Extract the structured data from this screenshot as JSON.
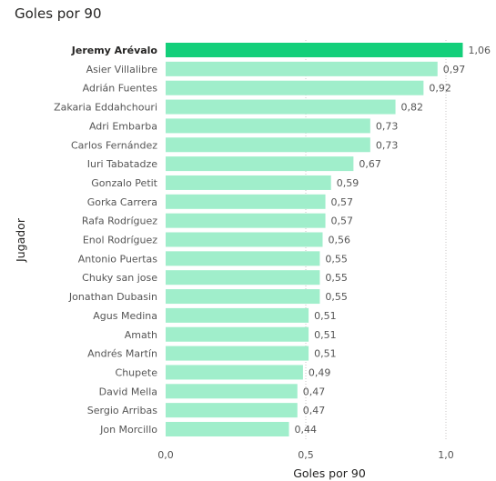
{
  "chart_data": {
    "type": "bar",
    "orientation": "horizontal",
    "title": "Goles por 90",
    "xlabel": "Goles por 90",
    "ylabel": "Jugador",
    "xlim": [
      0,
      1.06
    ],
    "xticks": [
      "0,0",
      "0,5",
      "1,0"
    ],
    "xtick_values": [
      0,
      0.5,
      1.0
    ],
    "grid": "vertical-dashed",
    "highlight_color": "#13CF7A",
    "bar_color": "#A0EECB",
    "highlighted_category": "Jeremy Arévalo",
    "categories": [
      "Jeremy Arévalo",
      "Asier Villalibre",
      "Adrián Fuentes",
      "Zakaria Eddahchouri",
      "Adri Embarba",
      "Carlos Fernández",
      "Iuri Tabatadze",
      "Gonzalo Petit",
      "Gorka Carrera",
      "Rafa Rodríguez",
      "Enol Rodríguez",
      "Antonio Puertas",
      "Chuky san jose",
      "Jonathan Dubasin",
      "Agus Medina",
      "Amath",
      "Andrés Martín",
      "Chupete",
      "David Mella",
      "Sergio Arribas",
      "Jon Morcillo"
    ],
    "values": [
      1.06,
      0.97,
      0.92,
      0.82,
      0.73,
      0.73,
      0.67,
      0.59,
      0.57,
      0.57,
      0.56,
      0.55,
      0.55,
      0.55,
      0.51,
      0.51,
      0.51,
      0.49,
      0.47,
      0.47,
      0.44
    ],
    "value_labels": [
      "1,06",
      "0,97",
      "0,92",
      "0,82",
      "0,73",
      "0,73",
      "0,67",
      "0,59",
      "0,57",
      "0,57",
      "0,56",
      "0,55",
      "0,55",
      "0,55",
      "0,51",
      "0,51",
      "0,51",
      "0,49",
      "0,47",
      "0,47",
      "0,44"
    ]
  }
}
